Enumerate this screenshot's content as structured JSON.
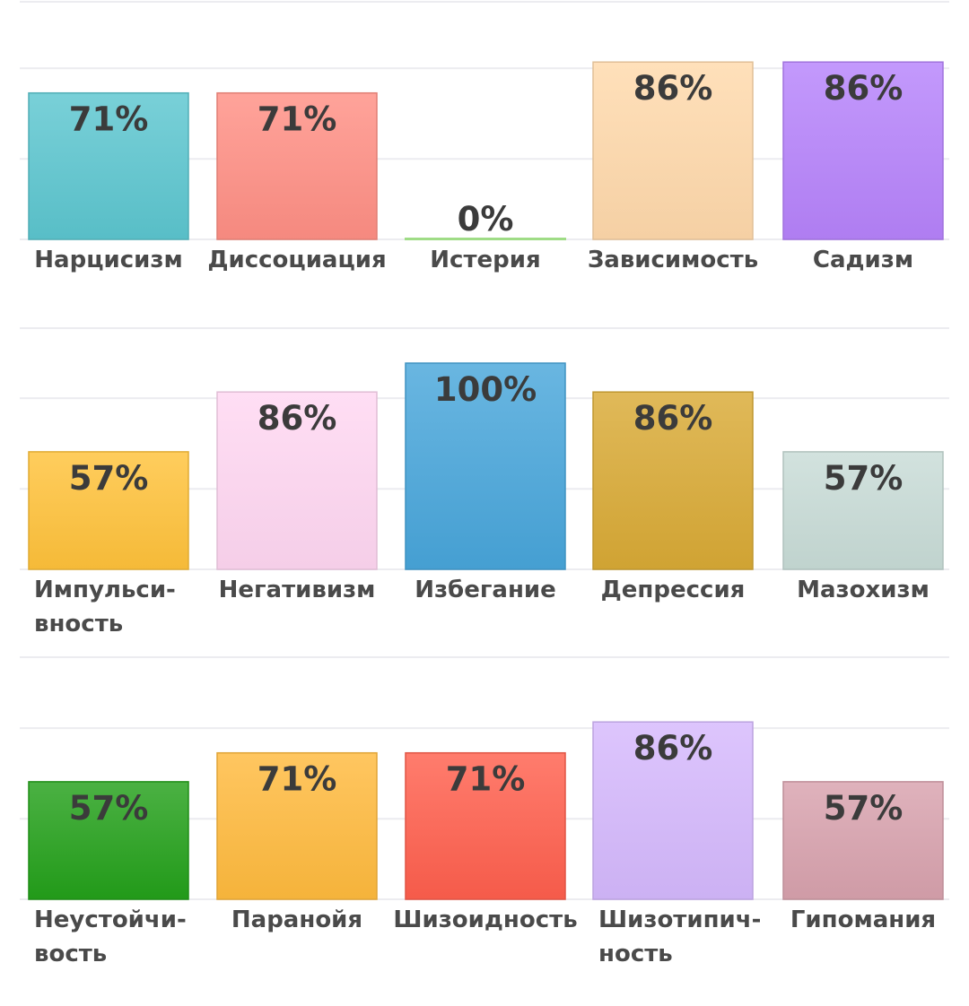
{
  "chart_data": [
    {
      "type": "bar",
      "ylim": [
        0,
        100
      ],
      "grid": true,
      "categories": [
        {
          "lines": [
            "Нарцисизм"
          ],
          "align": "middle",
          "value": 71,
          "value_label": "71%",
          "color": "#5cc6cf"
        },
        {
          "lines": [
            "Диссоциация"
          ],
          "align": "middle",
          "value": 71,
          "value_label": "71%",
          "color": "#ff8f84"
        },
        {
          "lines": [
            "Истерия"
          ],
          "align": "middle",
          "value": 0,
          "value_label": "0%",
          "color": "#9fdc86"
        },
        {
          "lines": [
            "Зависимость"
          ],
          "align": "middle",
          "value": 86,
          "value_label": "86%",
          "color": "#ffd9ab"
        },
        {
          "lines": [
            "Садизм"
          ],
          "align": "middle",
          "value": 86,
          "value_label": "86%",
          "color": "#b682fb"
        }
      ]
    },
    {
      "type": "bar",
      "ylim": [
        0,
        100
      ],
      "grid": true,
      "categories": [
        {
          "lines": [
            "Импульси-",
            "вность"
          ],
          "align": "start",
          "value": 57,
          "value_label": "57%",
          "color": "#ffc23a"
        },
        {
          "lines": [
            "Негативизм"
          ],
          "align": "middle",
          "value": 86,
          "value_label": "86%",
          "color": "#ffd7f2"
        },
        {
          "lines": [
            "Избегание"
          ],
          "align": "middle",
          "value": 100,
          "value_label": "100%",
          "color": "#48a6db"
        },
        {
          "lines": [
            "Депрессия"
          ],
          "align": "middle",
          "value": 86,
          "value_label": "86%",
          "color": "#d9aa35"
        },
        {
          "lines": [
            "Мазохизм"
          ],
          "align": "middle",
          "value": 57,
          "value_label": "57%",
          "color": "#c8dcd7"
        }
      ]
    },
    {
      "type": "bar",
      "ylim": [
        0,
        100
      ],
      "grid": true,
      "categories": [
        {
          "lines": [
            "Неустойчи-",
            "вость"
          ],
          "align": "start",
          "value": 57,
          "value_label": "57%",
          "color": "#23a01a"
        },
        {
          "lines": [
            "Паранойя"
          ],
          "align": "middle",
          "value": 71,
          "value_label": "71%",
          "color": "#ffba3d"
        },
        {
          "lines": [
            "Шизоидность"
          ],
          "align": "middle",
          "value": 71,
          "value_label": "71%",
          "color": "#ff5f4d"
        },
        {
          "lines": [
            "Шизотипич-",
            "ность"
          ],
          "align": "start",
          "value": 86,
          "value_label": "86%",
          "color": "#d5b8fd"
        },
        {
          "lines": [
            "Гипомания"
          ],
          "align": "middle",
          "value": 57,
          "value_label": "57%",
          "color": "#d8a1ad"
        }
      ]
    }
  ]
}
